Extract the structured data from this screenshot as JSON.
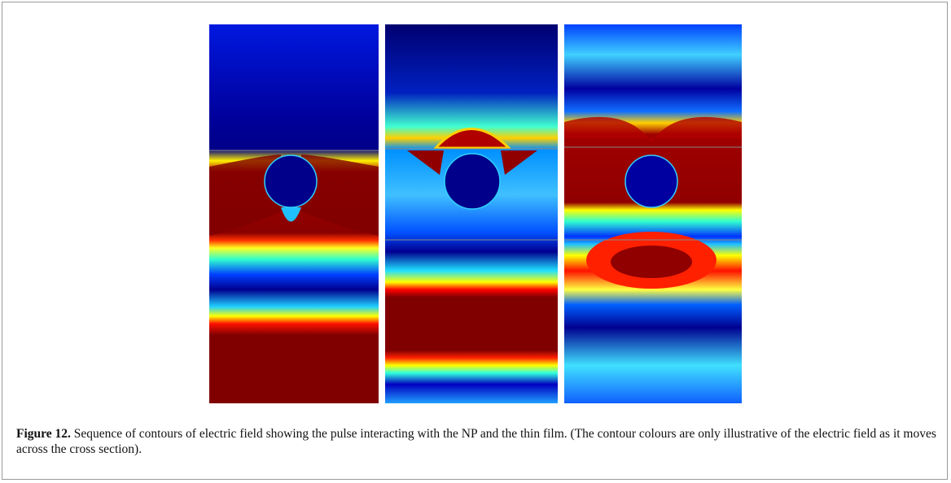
{
  "figure": {
    "label": "Figure 12.",
    "caption": "Sequence of contours of electric field showing the pulse interacting with the NP and the thin film. (The contour colours are only illustrative of the electric field as it moves across the cross section)."
  }
}
